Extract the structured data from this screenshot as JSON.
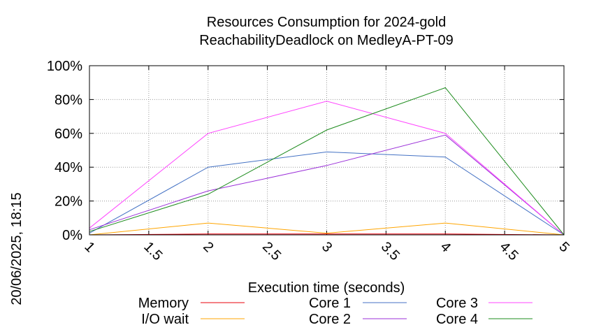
{
  "chart_data": {
    "type": "line",
    "title": "Resources Consumption for 2024-gold",
    "subtitle": "ReachabilityDeadlock on MedleyA-PT-09",
    "xlabel": "Execution time (seconds)",
    "ylabel": "",
    "side_label": "20/06/2025, 18:15",
    "xlim": [
      1,
      5
    ],
    "ylim": [
      0,
      100
    ],
    "x_ticks": [
      "1",
      "1.5",
      "2",
      "2.5",
      "3",
      "3.5",
      "4",
      "4.5",
      "5"
    ],
    "y_ticks": [
      "0%",
      "20%",
      "40%",
      "60%",
      "80%",
      "100%"
    ],
    "grid": true,
    "legend_position": "bottom",
    "x": [
      1,
      2,
      3,
      4,
      5
    ],
    "series": [
      {
        "name": "Memory",
        "color": "#e8000b",
        "values": [
          0,
          0.5,
          0.5,
          0.5,
          0
        ]
      },
      {
        "name": "I/O wait",
        "color": "#ffa500",
        "values": [
          0,
          7,
          1,
          7,
          0
        ]
      },
      {
        "name": "Core 1",
        "color": "#4472c4",
        "values": [
          1,
          40,
          49,
          46,
          0
        ]
      },
      {
        "name": "Core 2",
        "color": "#9b30d9",
        "values": [
          3,
          26,
          41,
          59,
          0
        ]
      },
      {
        "name": "Core 3",
        "color": "#ff44ff",
        "values": [
          4,
          60,
          79,
          60,
          0
        ]
      },
      {
        "name": "Core 4",
        "color": "#1e8c1e",
        "values": [
          2,
          24,
          62,
          87,
          0
        ]
      }
    ]
  }
}
